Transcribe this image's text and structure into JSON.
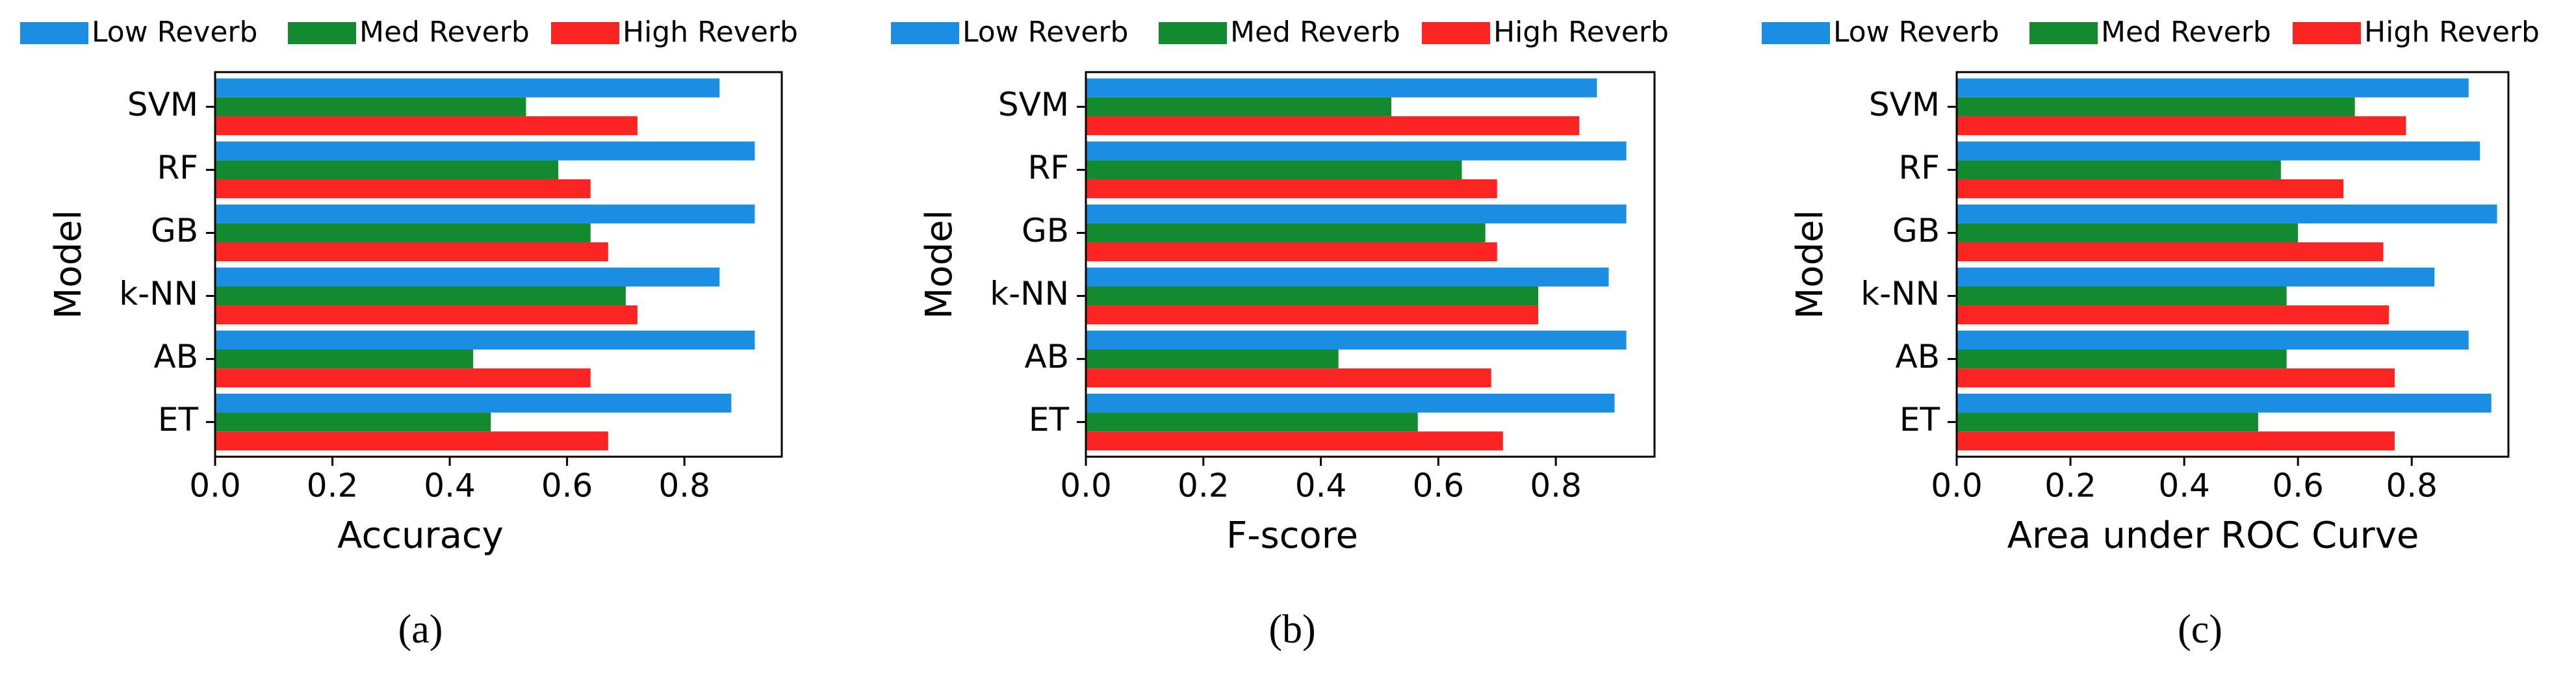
{
  "chart_data": [
    {
      "type": "barh",
      "caption": "(a)",
      "xlabel": "Accuracy",
      "ylabel": "Model",
      "categories": [
        "SVM",
        "RF",
        "GB",
        "k-NN",
        "AB",
        "ET"
      ],
      "series": [
        {
          "name": "Low Reverb",
          "color": "#1a8ee0",
          "values": [
            0.86,
            0.92,
            0.92,
            0.86,
            0.92,
            0.88
          ]
        },
        {
          "name": "Med Reverb",
          "color": "#138a2e",
          "values": [
            0.53,
            0.585,
            0.64,
            0.7,
            0.44,
            0.47
          ]
        },
        {
          "name": "High Reverb",
          "color": "#fc2323",
          "values": [
            0.72,
            0.64,
            0.67,
            0.72,
            0.64,
            0.67
          ]
        }
      ],
      "xlim": [
        0,
        0.966
      ],
      "xticks": [
        {
          "value": 0,
          "label": "0.0"
        },
        0.2,
        0.4,
        0.6,
        0.8
      ]
    },
    {
      "type": "barh",
      "caption": "(b)",
      "xlabel": "F-score",
      "ylabel": "Model",
      "categories": [
        "SVM",
        "RF",
        "GB",
        "k-NN",
        "AB",
        "ET"
      ],
      "series": [
        {
          "name": "Low Reverb",
          "color": "#1a8ee0",
          "values": [
            0.87,
            0.92,
            0.92,
            0.89,
            0.92,
            0.9
          ]
        },
        {
          "name": "Med Reverb",
          "color": "#138a2e",
          "values": [
            0.52,
            0.64,
            0.68,
            0.77,
            0.43,
            0.565
          ]
        },
        {
          "name": "High Reverb",
          "color": "#fc2323",
          "values": [
            0.84,
            0.7,
            0.7,
            0.77,
            0.69,
            0.71
          ]
        }
      ],
      "xlim": [
        0,
        0.968
      ],
      "xticks": [
        {
          "value": 0,
          "label": "0.0"
        },
        0.2,
        0.4,
        0.6,
        0.8
      ]
    },
    {
      "type": "barh",
      "caption": "(c)",
      "xlabel": "Area under ROC Curve",
      "ylabel": "Model",
      "categories": [
        "SVM",
        "RF",
        "GB",
        "k-NN",
        "AB",
        "ET"
      ],
      "series": [
        {
          "name": "Low Reverb",
          "color": "#1a8ee0",
          "values": [
            0.9,
            0.92,
            0.95,
            0.84,
            0.9,
            0.94
          ]
        },
        {
          "name": "Med Reverb",
          "color": "#138a2e",
          "values": [
            0.7,
            0.57,
            0.6,
            0.58,
            0.58,
            0.53
          ]
        },
        {
          "name": "High Reverb",
          "color": "#fc2323",
          "values": [
            0.79,
            0.68,
            0.75,
            0.76,
            0.77,
            0.77
          ]
        }
      ],
      "xlim": [
        0,
        0.97
      ],
      "xticks": [
        {
          "value": 0,
          "label": "0.0"
        },
        0.2,
        0.4,
        0.6,
        0.8
      ]
    }
  ]
}
